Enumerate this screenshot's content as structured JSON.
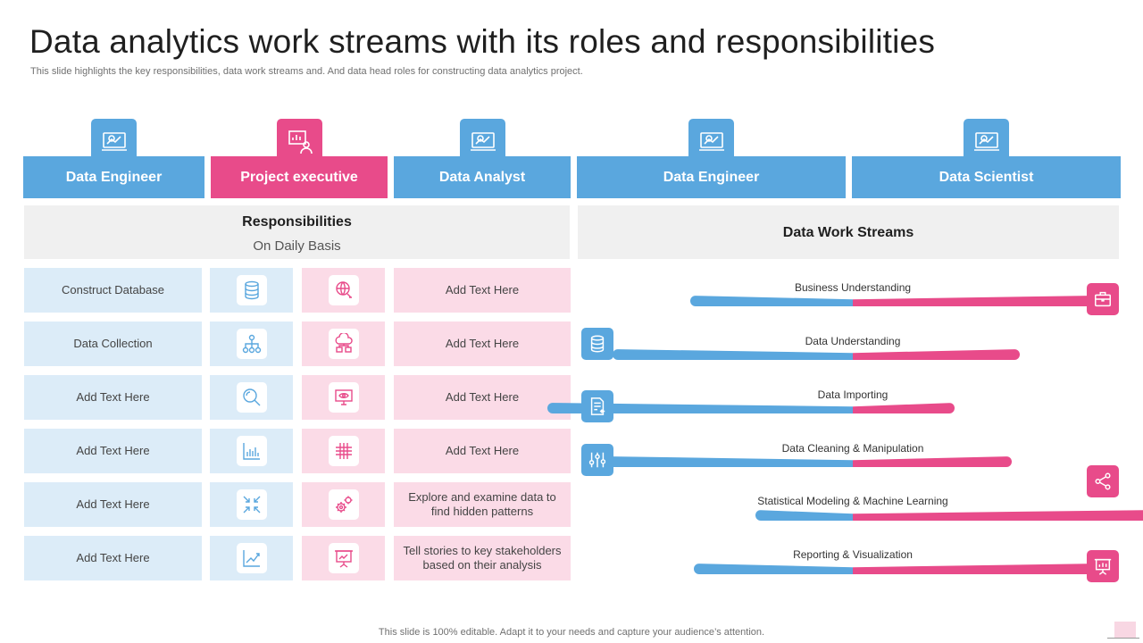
{
  "title": "Data analytics work streams with its roles and responsibilities",
  "subtitle": "This slide highlights the key responsibilities, data work streams and. And data head roles for constructing data analytics project.",
  "footer": "This slide is 100% editable. Adapt it to your needs and capture your audience’s attention.",
  "colors": {
    "blue": "#5aa7de",
    "pink": "#e84b8a",
    "light_blue": "#dcecf8",
    "light_pink": "#fbdbe7"
  },
  "roles": [
    {
      "label": "Data Engineer",
      "icon": "monitor-chart-icon"
    },
    {
      "label": "Project executive",
      "icon": "presenter-icon"
    },
    {
      "label": "Data Analyst",
      "icon": "monitor-chart-icon"
    },
    {
      "label": "Data Engineer",
      "icon": "monitor-chart-icon"
    },
    {
      "label": "Data Scientist",
      "icon": "monitor-chart-icon"
    }
  ],
  "responsibilities": {
    "title": "Responsibilities",
    "subtitle": "On Daily Basis",
    "rows": [
      {
        "label": "Construct Database",
        "blue_icon": "database-icon",
        "pink_icon": "globe-network-icon",
        "text": "Add Text Here"
      },
      {
        "label": "Data Collection",
        "blue_icon": "hierarchy-icon",
        "pink_icon": "cloud-network-icon",
        "text": "Add Text Here"
      },
      {
        "label": "Add Text Here",
        "blue_icon": "magnifier-icon",
        "pink_icon": "monitor-eye-icon",
        "text": "Add Text Here"
      },
      {
        "label": "Add Text Here",
        "blue_icon": "bar-chart-icon",
        "pink_icon": "grid-icon",
        "text": "Add Text Here"
      },
      {
        "label": "Add Text Here",
        "blue_icon": "arrows-compress-icon",
        "pink_icon": "gears-icon",
        "text": "Explore and examine data to find hidden patterns"
      },
      {
        "label": "Add Text Here",
        "blue_icon": "line-chart-icon",
        "pink_icon": "presentation-board-icon",
        "text": "Tell stories to key stakeholders based on their analysis"
      }
    ]
  },
  "work_streams": {
    "title": "Data Work Streams",
    "items": [
      {
        "label": "Business Understanding",
        "blue_share": 0.4,
        "pink_share": 0.6
      },
      {
        "label": "Data Understanding",
        "blue_share": 0.59,
        "pink_share": 0.41
      },
      {
        "label": "Data Importing",
        "blue_share": 0.75,
        "pink_share": 0.25
      },
      {
        "label": "Data Cleaning & Manipulation",
        "blue_share": 0.61,
        "pink_share": 0.39
      },
      {
        "label": "Statistical Modeling & Machine Learning",
        "blue_share": 0.24,
        "pink_share": 0.76
      },
      {
        "label": "Reporting & Visualization",
        "blue_share": 0.39,
        "pink_share": 0.61
      }
    ],
    "left_icons": [
      "database-icon",
      "document-import-icon",
      "sliders-icon"
    ],
    "right_icons": [
      "briefcase-icon",
      "share-icon",
      "presentation-icon"
    ]
  }
}
